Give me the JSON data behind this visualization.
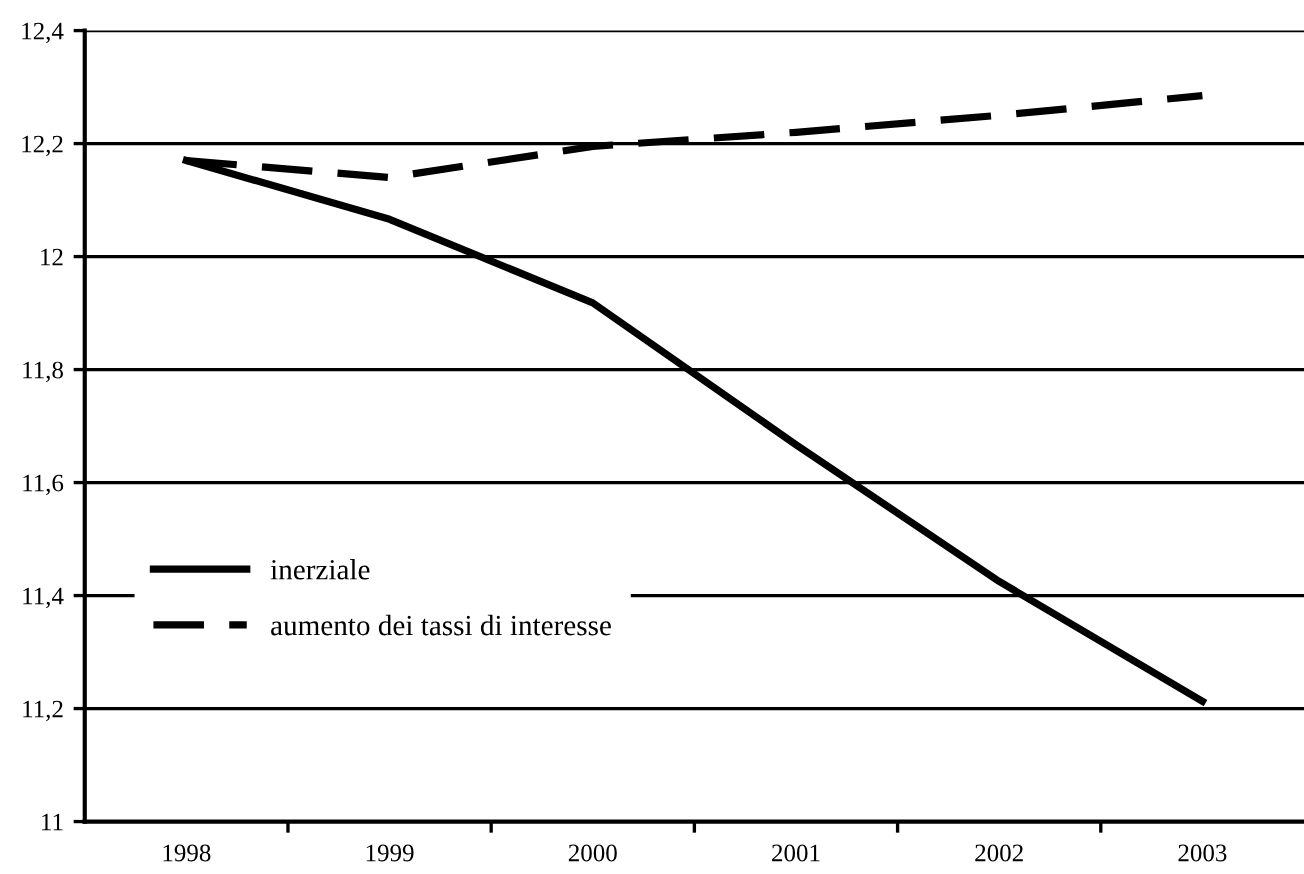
{
  "chart_data": {
    "type": "line",
    "categories": [
      "1998",
      "1999",
      "2000",
      "2001",
      "2002",
      "2003"
    ],
    "series": [
      {
        "name": "inerziale",
        "color": "#000000",
        "line_style": "solid",
        "values": [
          12.17,
          12.066,
          11.918,
          11.667,
          11.425,
          11.213
        ]
      },
      {
        "name": "aumento dei tassi di interesse",
        "color": "#000000",
        "line_style": "dashed",
        "values": [
          12.17,
          12.14,
          12.195,
          12.22,
          12.25,
          12.285
        ]
      }
    ],
    "ylim": [
      11,
      12.4
    ],
    "yticks": [
      {
        "value": 11,
        "label": "11"
      },
      {
        "value": 11.2,
        "label": "11,2"
      },
      {
        "value": 11.4,
        "label": "11,4"
      },
      {
        "value": 11.6,
        "label": "11,6"
      },
      {
        "value": 11.8,
        "label": "11,8"
      },
      {
        "value": 12,
        "label": "12"
      },
      {
        "value": 12.2,
        "label": "12,2"
      },
      {
        "value": 12.4,
        "label": "12,4"
      }
    ],
    "grid": "y",
    "legend": "center left",
    "marker": "none"
  }
}
